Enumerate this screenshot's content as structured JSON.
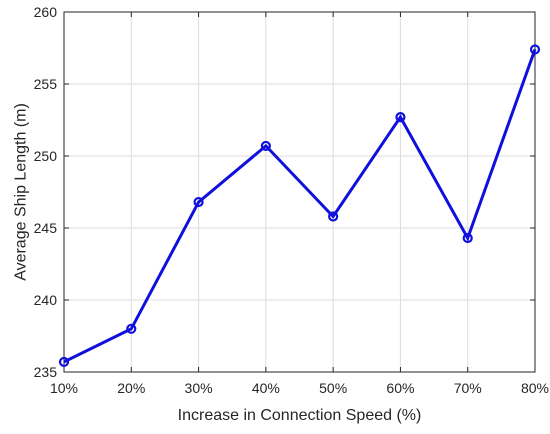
{
  "chart_data": {
    "type": "line",
    "title": "",
    "xlabel": "Increase in Connection Speed (%)",
    "ylabel": "Average Ship Length (m)",
    "categories": [
      "10%",
      "20%",
      "30%",
      "40%",
      "50%",
      "60%",
      "70%",
      "80%"
    ],
    "series": [
      {
        "values": [
          235.7,
          238.0,
          246.8,
          250.7,
          245.8,
          252.7,
          244.3,
          257.4
        ],
        "color": "#1010dd",
        "marker": "circle"
      }
    ],
    "ylim": [
      235,
      260
    ],
    "yticks": [
      235,
      240,
      245,
      250,
      255,
      260
    ],
    "grid": true,
    "legend": "none"
  }
}
